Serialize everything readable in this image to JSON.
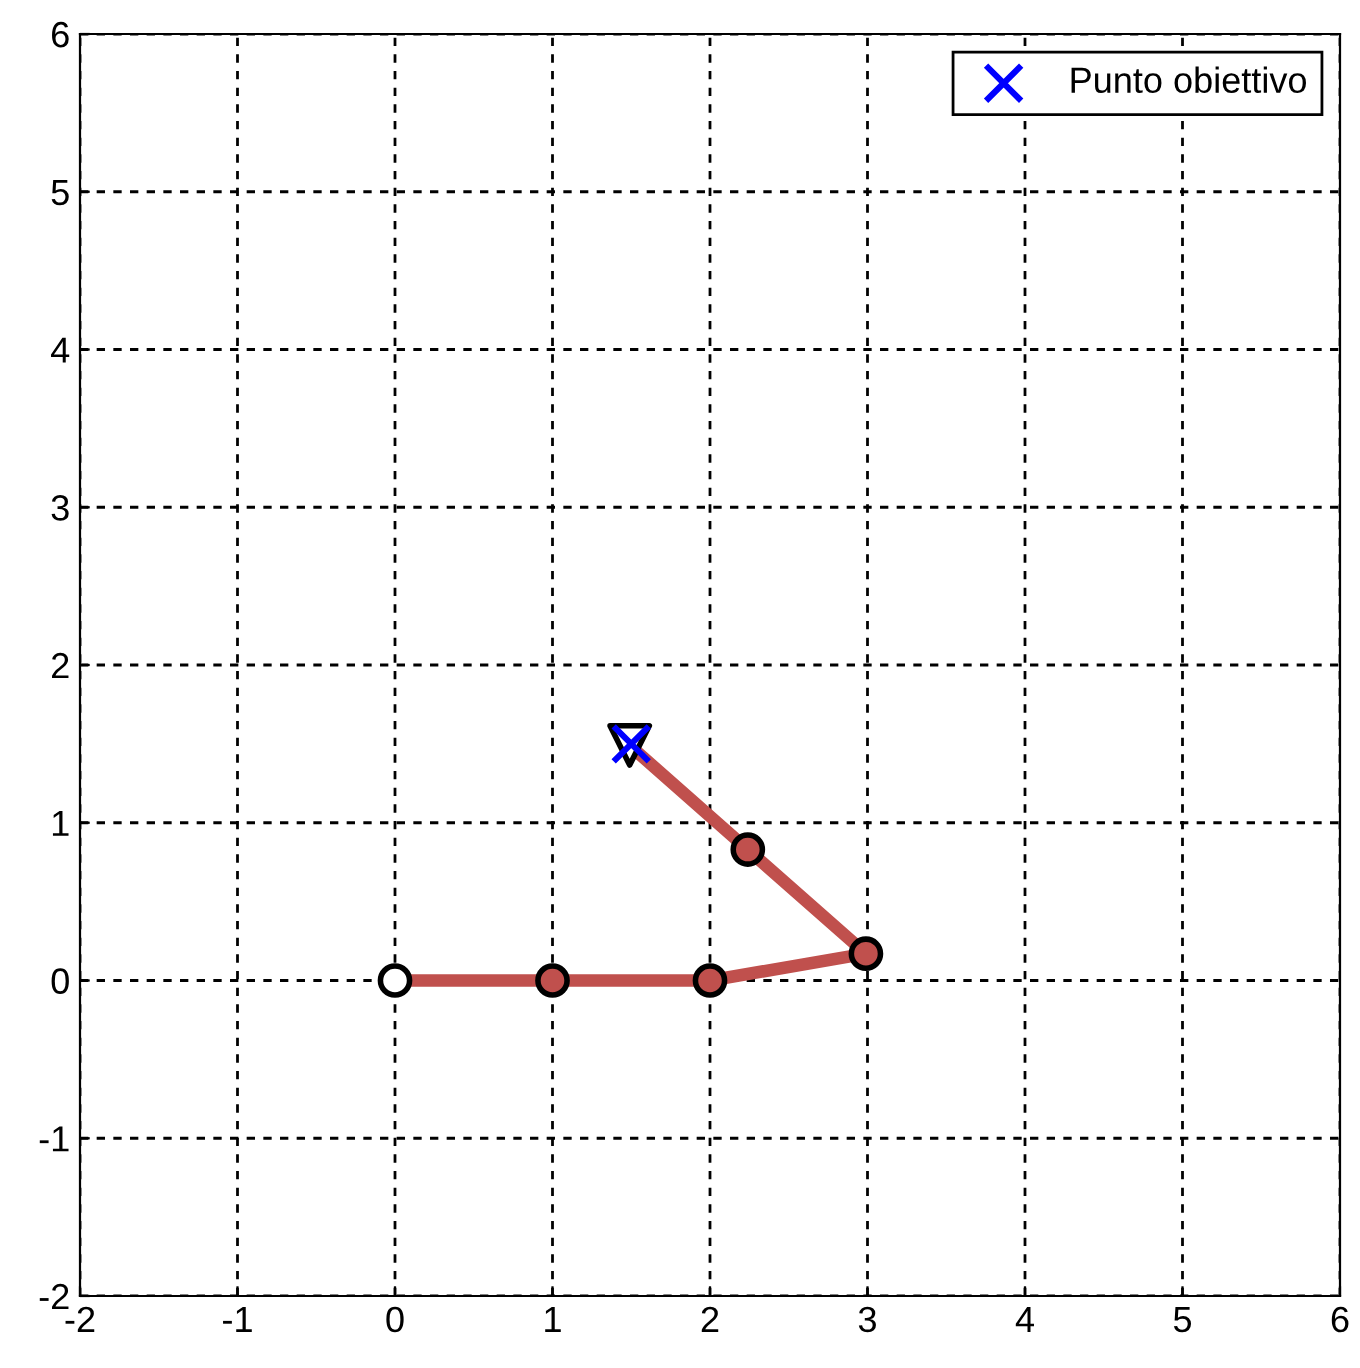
{
  "chart_data": {
    "type": "line",
    "xlim": [
      -2,
      6
    ],
    "ylim": [
      -2,
      6
    ],
    "xticks": [
      -2,
      -1,
      0,
      1,
      2,
      3,
      4,
      5,
      6
    ],
    "yticks": [
      -2,
      -1,
      0,
      1,
      2,
      3,
      4,
      5,
      6
    ],
    "grid": true,
    "legend": "top right",
    "series": [
      {
        "color": "#c0504d",
        "marker": "none",
        "x": [
          0,
          1,
          2,
          2.99,
          2.24,
          1.49
        ],
        "values": [
          0,
          0,
          0,
          0.17,
          0.83,
          1.49
        ]
      },
      {
        "type": "scatter",
        "marker": "circle",
        "colors": [
          "#ffffff",
          "#c0504d",
          "#c0504d",
          "#c0504d",
          "#c0504d"
        ],
        "x": [
          0,
          1,
          2,
          2.99,
          2.24
        ],
        "values": [
          0,
          0,
          0,
          0.17,
          0.83
        ]
      },
      {
        "type": "scatter",
        "marker": "triangle",
        "color": "#ffffff",
        "x": [
          1.49
        ],
        "values": [
          1.49
        ]
      },
      {
        "type": "scatter",
        "marker": "cross",
        "color": "#0000ff",
        "name": "Punto obiettivo",
        "x": [
          1.5
        ],
        "values": [
          1.5
        ]
      }
    ]
  }
}
